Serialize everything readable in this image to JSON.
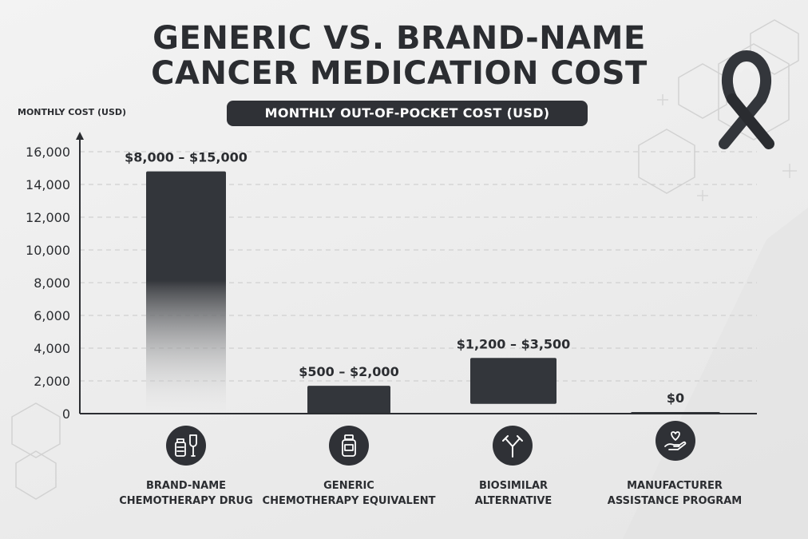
{
  "title_line1": "GENERIC VS. BRAND-NAME",
  "title_line2": "CANCER MEDICATION COST",
  "subtitle": "MONTHLY OUT-OF-POCKET COST (USD)",
  "colors": {
    "bar": "#33363b",
    "text": "#2b2d31",
    "grid": "#c9c9c9"
  },
  "categories": [
    {
      "line1": "BRAND-NAME",
      "line2": "CHEMOTHERAPY DRUG",
      "icon": "medicine-vial-iv-bag-icon"
    },
    {
      "line1": "GENERIC",
      "line2": "CHEMOTHERAPY EQUIVALENT",
      "icon": "medicine-bottle-icon"
    },
    {
      "line1": "BIOSIMILAR",
      "line2": "ALTERNATIVE",
      "icon": "antibody-icon"
    },
    {
      "line1": "MANUFACTURER",
      "line2": "ASSISTANCE PROGRAM",
      "icon": "heart-in-hand-icon"
    }
  ],
  "chart_data": {
    "type": "bar",
    "title": "GENERIC VS. BRAND-NAME CANCER MEDICATION COST",
    "subtitle": "MONTHLY OUT-OF-POCKET COST (USD)",
    "ylabel": "MONTHLY COST (USD)",
    "xlabel": "",
    "categories": [
      "BRAND-NAME CHEMOTHERAPY DRUG",
      "GENERIC CHEMOTHERAPY EQUIVALENT",
      "BIOSIMILAR ALTERNATIVE",
      "MANUFACTURER ASSISTANCE PROGRAM"
    ],
    "ranges": [
      [
        8000,
        15000
      ],
      [
        500,
        2000
      ],
      [
        1200,
        3500
      ],
      [
        0,
        0
      ]
    ],
    "bar_tops": [
      14800,
      1700,
      3400,
      100
    ],
    "bar_bottoms": [
      0,
      0,
      600,
      0
    ],
    "data_labels": [
      "$8,000 – $15,000",
      "$500 – $2,000",
      "$1,200 – $3,500",
      "$0"
    ],
    "ylim": [
      0,
      17000
    ],
    "yticks": [
      0,
      2000,
      4000,
      6000,
      8000,
      10000,
      12000,
      14000,
      16000
    ],
    "ytick_labels": [
      "0",
      "2,000",
      "4,000",
      "6,000",
      "8,000",
      "10,000",
      "12,000",
      "14,000",
      "16,000"
    ],
    "grid": true,
    "legend": "none"
  }
}
